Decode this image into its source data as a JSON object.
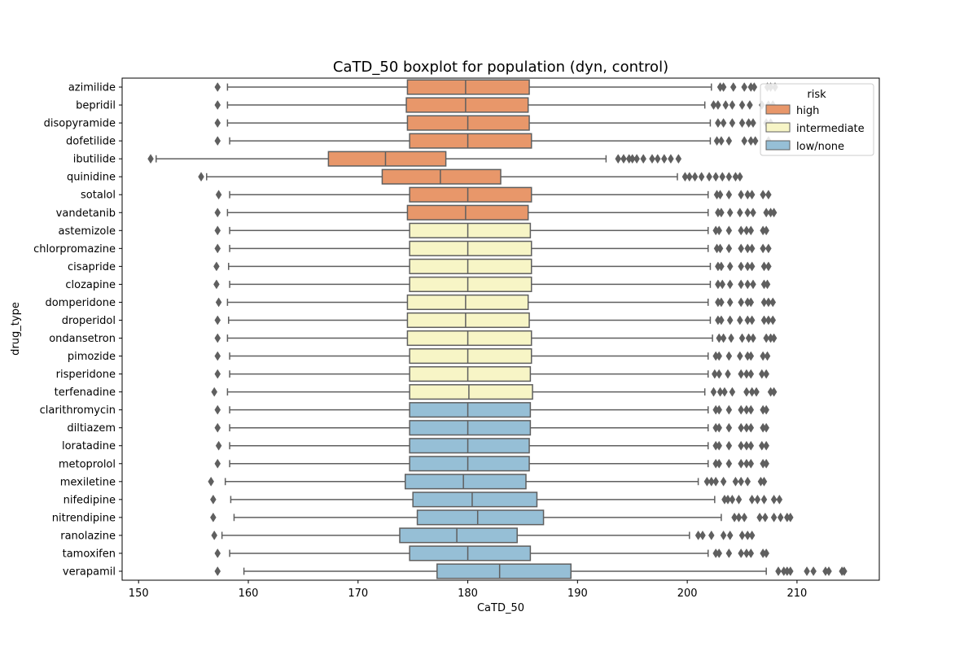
{
  "chart_data": {
    "type": "boxplot",
    "orientation": "horizontal",
    "title": "CaTD_50 boxplot for population (dyn, control)",
    "xlabel": "CaTD_50",
    "ylabel": "drug_type",
    "xlim": [
      148.5,
      217.5
    ],
    "xticks": [
      150,
      160,
      170,
      180,
      190,
      200,
      210
    ],
    "legend": {
      "title": "risk",
      "position": "top-right",
      "entries": [
        {
          "label": "high",
          "color": "#e8976a"
        },
        {
          "label": "intermediate",
          "color": "#f7f5c6"
        },
        {
          "label": "low/none",
          "color": "#96bfd6"
        }
      ]
    },
    "colors": {
      "high": "#e8976a",
      "intermediate": "#f7f5c6",
      "low/none": "#96bfd6",
      "line": "#5f5f5f"
    },
    "drugs": [
      {
        "name": "azimilide",
        "risk": "high",
        "wlo": 158.1,
        "q1": 174.5,
        "med": 179.8,
        "q3": 185.6,
        "whi": 202.2,
        "outliers": [
          157.2,
          203.0,
          203.3,
          204.2,
          205.2,
          205.8,
          206.1,
          207.3,
          207.6,
          208.0
        ]
      },
      {
        "name": "bepridil",
        "risk": "high",
        "wlo": 158.1,
        "q1": 174.4,
        "med": 179.8,
        "q3": 185.5,
        "whi": 201.6,
        "outliers": [
          157.2,
          202.4,
          202.8,
          203.5,
          204.1,
          205.0,
          205.7,
          206.8,
          207.4,
          207.8
        ]
      },
      {
        "name": "disopyramide",
        "risk": "high",
        "wlo": 158.1,
        "q1": 174.5,
        "med": 180.0,
        "q3": 185.6,
        "whi": 202.1,
        "outliers": [
          157.2,
          202.8,
          203.3,
          204.1,
          205.0,
          205.6,
          206.0,
          207.2,
          207.6
        ]
      },
      {
        "name": "dofetilide",
        "risk": "high",
        "wlo": 158.3,
        "q1": 174.7,
        "med": 180.0,
        "q3": 185.8,
        "whi": 202.1,
        "outliers": [
          157.2,
          202.7,
          203.1,
          203.8,
          205.2,
          205.8,
          206.2,
          207.4
        ]
      },
      {
        "name": "ibutilide",
        "risk": "high",
        "wlo": 151.6,
        "q1": 167.3,
        "med": 172.5,
        "q3": 178.0,
        "whi": 192.6,
        "outliers": [
          151.1,
          193.7,
          194.2,
          194.7,
          195.0,
          195.4,
          196.0,
          196.8,
          197.3,
          197.9,
          198.5,
          199.2
        ]
      },
      {
        "name": "quinidine",
        "risk": "high",
        "wlo": 156.2,
        "q1": 172.2,
        "med": 177.5,
        "q3": 183.0,
        "whi": 199.1,
        "outliers": [
          155.7,
          199.8,
          200.2,
          200.7,
          201.3,
          202.0,
          202.6,
          203.2,
          203.8,
          204.4,
          204.8
        ]
      },
      {
        "name": "sotalol",
        "risk": "high",
        "wlo": 158.3,
        "q1": 174.7,
        "med": 180.0,
        "q3": 185.8,
        "whi": 201.9,
        "outliers": [
          157.3,
          202.7,
          203.0,
          203.8,
          204.9,
          205.5,
          205.9,
          206.9,
          207.4
        ]
      },
      {
        "name": "vandetanib",
        "risk": "high",
        "wlo": 158.1,
        "q1": 174.5,
        "med": 179.8,
        "q3": 185.5,
        "whi": 201.9,
        "outliers": [
          157.2,
          202.8,
          203.1,
          203.9,
          204.8,
          205.5,
          206.0,
          207.2,
          207.6,
          207.9
        ]
      },
      {
        "name": "astemizole",
        "risk": "intermediate",
        "wlo": 158.3,
        "q1": 174.7,
        "med": 180.0,
        "q3": 185.7,
        "whi": 201.9,
        "outliers": [
          157.2,
          202.6,
          202.9,
          203.8,
          204.9,
          205.4,
          205.8,
          206.9,
          207.2
        ]
      },
      {
        "name": "chlorpromazine",
        "risk": "intermediate",
        "wlo": 158.3,
        "q1": 174.7,
        "med": 180.0,
        "q3": 185.8,
        "whi": 201.9,
        "outliers": [
          157.2,
          202.7,
          203.0,
          203.8,
          204.9,
          205.5,
          205.9,
          206.9,
          207.4
        ]
      },
      {
        "name": "cisapride",
        "risk": "intermediate",
        "wlo": 158.2,
        "q1": 174.7,
        "med": 180.0,
        "q3": 185.8,
        "whi": 202.1,
        "outliers": [
          157.1,
          202.8,
          203.1,
          203.9,
          204.9,
          205.5,
          205.9,
          207.0,
          207.4
        ]
      },
      {
        "name": "clozapine",
        "risk": "intermediate",
        "wlo": 158.3,
        "q1": 174.7,
        "med": 180.0,
        "q3": 185.8,
        "whi": 202.1,
        "outliers": [
          157.1,
          202.8,
          203.2,
          203.9,
          204.9,
          205.5,
          206.0,
          207.0,
          207.3
        ]
      },
      {
        "name": "domperidone",
        "risk": "intermediate",
        "wlo": 158.1,
        "q1": 174.5,
        "med": 179.8,
        "q3": 185.5,
        "whi": 201.9,
        "outliers": [
          157.3,
          202.8,
          203.1,
          203.9,
          204.9,
          205.5,
          205.8,
          207.0,
          207.4,
          207.8
        ]
      },
      {
        "name": "droperidol",
        "risk": "intermediate",
        "wlo": 158.2,
        "q1": 174.5,
        "med": 179.8,
        "q3": 185.6,
        "whi": 202.1,
        "outliers": [
          157.2,
          202.8,
          203.1,
          203.9,
          204.8,
          205.5,
          205.9,
          207.0,
          207.4,
          207.8
        ]
      },
      {
        "name": "ondansetron",
        "risk": "intermediate",
        "wlo": 158.1,
        "q1": 174.5,
        "med": 180.0,
        "q3": 185.8,
        "whi": 202.3,
        "outliers": [
          157.2,
          202.9,
          203.3,
          204.0,
          205.0,
          205.6,
          206.0,
          207.2,
          207.6,
          207.9
        ]
      },
      {
        "name": "pimozide",
        "risk": "intermediate",
        "wlo": 158.3,
        "q1": 174.7,
        "med": 180.0,
        "q3": 185.8,
        "whi": 201.9,
        "outliers": [
          157.2,
          202.6,
          202.9,
          203.8,
          204.8,
          205.5,
          205.8,
          206.9,
          207.3
        ]
      },
      {
        "name": "risperidone",
        "risk": "intermediate",
        "wlo": 158.3,
        "q1": 174.7,
        "med": 180.0,
        "q3": 185.7,
        "whi": 201.9,
        "outliers": [
          157.2,
          202.5,
          202.9,
          203.7,
          204.9,
          205.4,
          205.8,
          206.8,
          207.2
        ]
      },
      {
        "name": "terfenadine",
        "risk": "intermediate",
        "wlo": 158.1,
        "q1": 174.7,
        "med": 180.1,
        "q3": 185.9,
        "whi": 201.6,
        "outliers": [
          156.9,
          202.4,
          203.0,
          203.4,
          204.1,
          205.4,
          205.9,
          206.3,
          207.6,
          207.9
        ]
      },
      {
        "name": "clarithromycin",
        "risk": "low/none",
        "wlo": 158.3,
        "q1": 174.7,
        "med": 180.0,
        "q3": 185.7,
        "whi": 201.9,
        "outliers": [
          157.2,
          202.6,
          202.9,
          203.8,
          204.9,
          205.4,
          205.8,
          206.9,
          207.2
        ]
      },
      {
        "name": "diltiazem",
        "risk": "low/none",
        "wlo": 158.3,
        "q1": 174.7,
        "med": 180.0,
        "q3": 185.7,
        "whi": 201.9,
        "outliers": [
          157.2,
          202.6,
          202.9,
          203.8,
          204.9,
          205.4,
          205.8,
          206.9,
          207.2
        ]
      },
      {
        "name": "loratadine",
        "risk": "low/none",
        "wlo": 158.3,
        "q1": 174.7,
        "med": 180.0,
        "q3": 185.6,
        "whi": 201.9,
        "outliers": [
          157.3,
          202.6,
          202.9,
          203.8,
          204.9,
          205.4,
          205.8,
          206.8,
          207.2
        ]
      },
      {
        "name": "metoprolol",
        "risk": "low/none",
        "wlo": 158.3,
        "q1": 174.7,
        "med": 180.0,
        "q3": 185.6,
        "whi": 201.9,
        "outliers": [
          157.2,
          202.6,
          202.9,
          203.8,
          204.9,
          205.4,
          205.8,
          206.9,
          207.2
        ]
      },
      {
        "name": "mexiletine",
        "risk": "low/none",
        "wlo": 157.9,
        "q1": 174.3,
        "med": 179.6,
        "q3": 185.3,
        "whi": 201.0,
        "outliers": [
          156.6,
          201.8,
          202.2,
          202.6,
          203.3,
          204.4,
          204.9,
          205.5,
          206.7,
          207.0
        ]
      },
      {
        "name": "nifedipine",
        "risk": "low/none",
        "wlo": 158.4,
        "q1": 175.0,
        "med": 180.4,
        "q3": 186.3,
        "whi": 202.5,
        "outliers": [
          156.8,
          203.4,
          203.7,
          204.1,
          204.7,
          205.9,
          206.4,
          207.0,
          207.9,
          208.4
        ]
      },
      {
        "name": "nitrendipine",
        "risk": "low/none",
        "wlo": 158.7,
        "q1": 175.4,
        "med": 180.9,
        "q3": 186.9,
        "whi": 203.1,
        "outliers": [
          156.8,
          204.3,
          204.7,
          205.2,
          206.6,
          207.1,
          207.9,
          208.5,
          209.1,
          209.4
        ]
      },
      {
        "name": "ranolazine",
        "risk": "low/none",
        "wlo": 157.6,
        "q1": 173.8,
        "med": 179.0,
        "q3": 184.5,
        "whi": 200.2,
        "outliers": [
          156.9,
          201.0,
          201.4,
          202.2,
          203.3,
          203.9,
          205.0,
          205.5,
          205.9
        ]
      },
      {
        "name": "tamoxifen",
        "risk": "low/none",
        "wlo": 158.3,
        "q1": 174.7,
        "med": 180.0,
        "q3": 185.7,
        "whi": 201.9,
        "outliers": [
          157.2,
          202.6,
          202.9,
          203.8,
          204.9,
          205.4,
          205.8,
          206.9,
          207.2
        ]
      },
      {
        "name": "verapamil",
        "risk": "low/none",
        "wlo": 159.6,
        "q1": 177.2,
        "med": 182.9,
        "q3": 189.4,
        "whi": 207.2,
        "outliers": [
          157.2,
          208.3,
          208.8,
          209.1,
          209.4,
          210.9,
          211.5,
          212.6,
          212.9,
          214.1,
          214.3
        ]
      }
    ]
  }
}
